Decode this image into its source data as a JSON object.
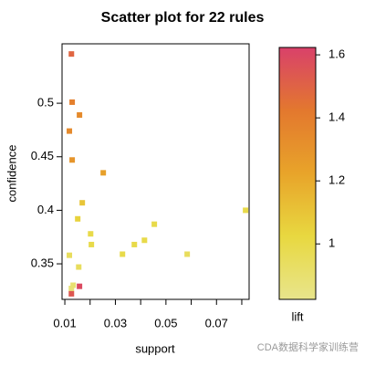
{
  "chart_data": {
    "type": "scatter",
    "title": "Scatter plot for 22 rules",
    "x_label": "support",
    "y_label": "confidence",
    "color_label": "lift",
    "x": [
      0.0126,
      0.0129,
      0.0158,
      0.0118,
      0.0129,
      0.0252,
      0.0169,
      0.0151,
      0.0202,
      0.0205,
      0.0328,
      0.0375,
      0.0415,
      0.0454,
      0.0584,
      0.0815,
      0.0118,
      0.0155,
      0.0126,
      0.0133,
      0.0158,
      0.0126
    ],
    "values": [
      0.546,
      0.501,
      0.489,
      0.474,
      0.447,
      0.435,
      0.407,
      0.392,
      0.378,
      0.368,
      0.359,
      0.368,
      0.372,
      0.387,
      0.359,
      0.4,
      0.358,
      0.347,
      0.327,
      0.33,
      0.329,
      0.322
    ],
    "lift": [
      1.5,
      1.4,
      1.35,
      1.35,
      1.3,
      1.25,
      1.1,
      1.05,
      1.0,
      1.0,
      1.0,
      1.0,
      1.0,
      1.0,
      0.95,
      1.0,
      0.95,
      0.95,
      0.88,
      0.9,
      1.6,
      1.55
    ],
    "xlim": [
      0.0089,
      0.0829
    ],
    "ylim": [
      0.3168,
      0.5555
    ],
    "xticks": [
      0.01,
      0.02,
      0.03,
      0.04,
      0.05,
      0.06,
      0.07,
      0.08
    ],
    "xtick_labels": [
      "0.01",
      null,
      "0.03",
      null,
      "0.05",
      null,
      "0.07",
      null
    ],
    "yticks": [
      0.35,
      0.4,
      0.45,
      0.5
    ],
    "clim": [
      0.824,
      1.635
    ],
    "cticks": [
      1,
      1.2,
      1.4,
      1.6
    ],
    "colormap": [
      "#e8e58c",
      "#e8d840",
      "#e8a42a",
      "#e3782e",
      "#d9416a"
    ],
    "watermark": "CDA数据科学家训练营"
  }
}
